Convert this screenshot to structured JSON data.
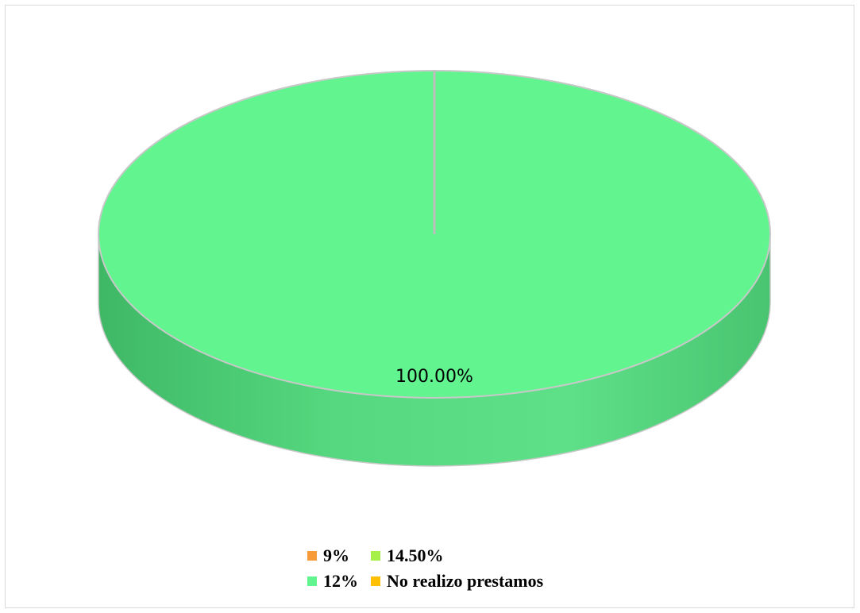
{
  "chart_data": {
    "type": "pie",
    "three_d": true,
    "categories": [
      "9%",
      "14.50%",
      "12%",
      "No realizo prestamos"
    ],
    "values": [
      0,
      0,
      100.0,
      0
    ],
    "data_labels": [
      "",
      "",
      "100.00%",
      ""
    ],
    "colors": [
      "#f79a3a",
      "#a6f04a",
      "#62f58f",
      "#ffc000"
    ],
    "legend_position": "bottom",
    "title": ""
  },
  "legend": {
    "items": [
      {
        "label": "9%",
        "color": "#f79a3a"
      },
      {
        "label": "14.50%",
        "color": "#a6f04a"
      },
      {
        "label": "12%",
        "color": "#62f58f"
      },
      {
        "label": "No realizo prestamos",
        "color": "#ffc000"
      }
    ]
  }
}
